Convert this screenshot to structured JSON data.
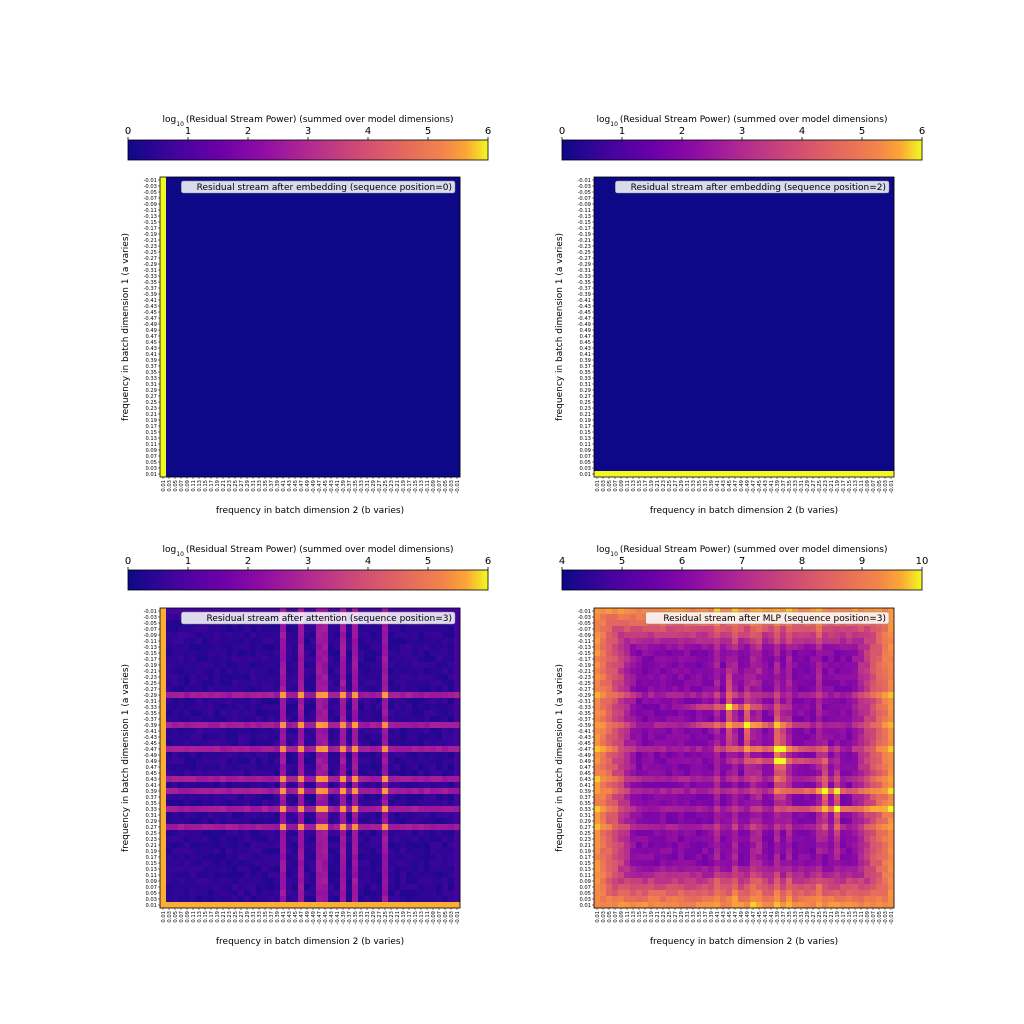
{
  "figure": {
    "colorbar_title_main": "log",
    "colorbar_title_sub": "10",
    "colorbar_title_rest": "(Residual Stream Power) (summed over model dimensions)",
    "xlabel": "frequency in batch dimension 2 (b varies)",
    "ylabel": "frequency in batch dimension 1 (a varies)"
  },
  "chart_data": [
    {
      "type": "heatmap",
      "panel_label": "Residual stream after embedding (sequence position=0)",
      "colormap": "plasma",
      "colorbar_ticks": [
        "0",
        "1",
        "2",
        "3",
        "4",
        "5",
        "6"
      ],
      "vmin": 0,
      "vmax": 6,
      "xlabel": "frequency in batch dimension 2 (b varies)",
      "ylabel": "frequency in batch dimension 1 (a varies)",
      "pattern": "embed_column"
    },
    {
      "type": "heatmap",
      "panel_label": "Residual stream after embedding (sequence position=2)",
      "colormap": "plasma",
      "colorbar_ticks": [
        "0",
        "1",
        "2",
        "3",
        "4",
        "5",
        "6"
      ],
      "vmin": 0,
      "vmax": 6,
      "xlabel": "frequency in batch dimension 2 (b varies)",
      "ylabel": "frequency in batch dimension 1 (a varies)",
      "pattern": "embed_row"
    },
    {
      "type": "heatmap",
      "panel_label": "Residual stream after attention (sequence position=3)",
      "colormap": "plasma",
      "colorbar_ticks": [
        "0",
        "1",
        "2",
        "3",
        "4",
        "5",
        "6"
      ],
      "vmin": 0,
      "vmax": 6,
      "xlabel": "frequency in batch dimension 2 (b varies)",
      "ylabel": "frequency in batch dimension 1 (a varies)",
      "pattern": "attention"
    },
    {
      "type": "heatmap",
      "panel_label": "Residual stream after MLP (sequence position=3)",
      "colormap": "plasma",
      "colorbar_ticks": [
        "4",
        "5",
        "6",
        "7",
        "8",
        "9",
        "10"
      ],
      "vmin": 4,
      "vmax": 10,
      "xlabel": "frequency in batch dimension 2 (b varies)",
      "ylabel": "frequency in batch dimension 1 (a varies)",
      "pattern": "mlp"
    }
  ],
  "axis_ticks": {
    "y": [
      "-0.01",
      "-0.03",
      "-0.05",
      "-0.07",
      "-0.09",
      "-0.11",
      "-0.13",
      "-0.15",
      "-0.17",
      "-0.19",
      "-0.21",
      "-0.23",
      "-0.25",
      "-0.27",
      "-0.29",
      "-0.31",
      "-0.33",
      "-0.35",
      "-0.37",
      "-0.39",
      "-0.41",
      "-0.43",
      "-0.45",
      "-0.47",
      "-0.49",
      "0.49",
      "0.47",
      "0.45",
      "0.43",
      "0.41",
      "0.39",
      "0.37",
      "0.35",
      "0.33",
      "0.31",
      "0.29",
      "0.27",
      "0.25",
      "0.23",
      "0.21",
      "0.19",
      "0.17",
      "0.15",
      "0.13",
      "0.11",
      "0.09",
      "0.07",
      "0.05",
      "0.03",
      "0.01"
    ],
    "x": [
      "0.01",
      "0.03",
      "0.05",
      "0.07",
      "0.09",
      "0.11",
      "0.13",
      "0.15",
      "0.17",
      "0.19",
      "0.21",
      "0.23",
      "0.25",
      "0.27",
      "0.29",
      "0.31",
      "0.33",
      "0.35",
      "0.37",
      "0.39",
      "0.41",
      "0.43",
      "0.45",
      "0.47",
      "0.49",
      "-0.49",
      "-0.47",
      "-0.45",
      "-0.43",
      "-0.41",
      "-0.39",
      "-0.37",
      "-0.35",
      "-0.33",
      "-0.31",
      "-0.29",
      "-0.27",
      "-0.25",
      "-0.23",
      "-0.21",
      "-0.19",
      "-0.17",
      "-0.15",
      "-0.13",
      "-0.11",
      "-0.09",
      "-0.07",
      "-0.05",
      "-0.03",
      "-0.01"
    ]
  }
}
